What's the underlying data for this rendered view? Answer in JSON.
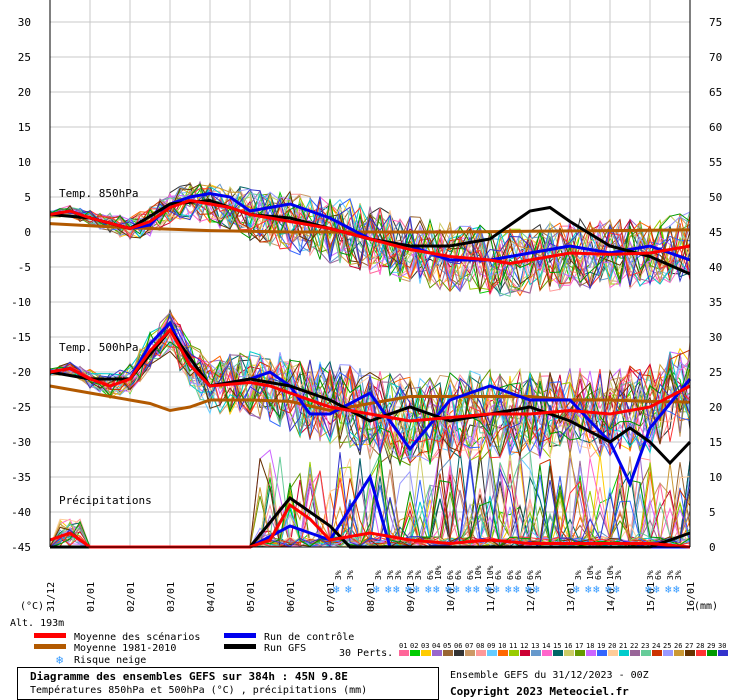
{
  "chart_data": {
    "type": "line",
    "left_axis_ticks": [
      "30",
      "25",
      "20",
      "15",
      "10",
      "5",
      "0",
      "-5",
      "-10",
      "-15",
      "-20",
      "-25",
      "-30",
      "-35",
      "-40",
      "-45"
    ],
    "right_axis_ticks": [
      "75",
      "70",
      "65",
      "60",
      "55",
      "50",
      "45",
      "40",
      "35",
      "30",
      "25",
      "20",
      "15",
      "10",
      "5",
      "0"
    ],
    "ylim": [
      -45,
      30
    ],
    "right_ylim": [
      0,
      75
    ],
    "left_unit": "(°C)",
    "right_unit": "(mm)",
    "x_ticks": [
      "31/12",
      "01/01",
      "02/01",
      "03/01",
      "04/01",
      "05/01",
      "06/01",
      "07/01",
      "08/01",
      "09/01",
      "10/01",
      "11/01",
      "12/01",
      "13/01",
      "14/01",
      "15/01",
      "16/01"
    ],
    "x_days": [
      0,
      1,
      2,
      3,
      4,
      5,
      6,
      7,
      8,
      9,
      10,
      11,
      12,
      13,
      14,
      15,
      16
    ],
    "panel_labels": [
      "Temp. 850hPa",
      "Temp. 500hPa",
      "Précipitations"
    ],
    "altitude_label": "Alt. 193m",
    "series": [
      {
        "name": "Moyenne des scénarios",
        "color": "#ff0000",
        "t850": [
          [
            0,
            2.5
          ],
          [
            0.5,
            3
          ],
          [
            1,
            2
          ],
          [
            2,
            0.5
          ],
          [
            2.5,
            1.5
          ],
          [
            3,
            3.5
          ],
          [
            3.5,
            4.5
          ],
          [
            4,
            4
          ],
          [
            4.5,
            3.5
          ],
          [
            5,
            2.5
          ],
          [
            6,
            1.5
          ],
          [
            7,
            0.5
          ],
          [
            8,
            -1
          ],
          [
            9,
            -2.5
          ],
          [
            10,
            -3.5
          ],
          [
            11,
            -4
          ],
          [
            11.5,
            -4.5
          ],
          [
            12,
            -4
          ],
          [
            13,
            -3
          ],
          [
            14,
            -3.2
          ],
          [
            15,
            -3
          ],
          [
            16,
            -2
          ]
        ],
        "t500": [
          [
            0,
            -20
          ],
          [
            0.5,
            -19.5
          ],
          [
            1,
            -21
          ],
          [
            1.5,
            -22
          ],
          [
            2,
            -21
          ],
          [
            2.5,
            -17
          ],
          [
            3,
            -14
          ],
          [
            3.5,
            -19
          ],
          [
            4,
            -22
          ],
          [
            5,
            -21.5
          ],
          [
            5.5,
            -22
          ],
          [
            6,
            -23
          ],
          [
            7,
            -25
          ],
          [
            8,
            -26
          ],
          [
            9,
            -27
          ],
          [
            10,
            -26.5
          ],
          [
            11,
            -26
          ],
          [
            12,
            -26
          ],
          [
            13,
            -25.5
          ],
          [
            14,
            -26
          ],
          [
            15,
            -25
          ],
          [
            16,
            -22
          ]
        ],
        "precip": [
          [
            0,
            1
          ],
          [
            0.5,
            2
          ],
          [
            1,
            0
          ],
          [
            5,
            0
          ],
          [
            5.5,
            1
          ],
          [
            6,
            6
          ],
          [
            6.5,
            4
          ],
          [
            7,
            1
          ],
          [
            8,
            2
          ],
          [
            9,
            1
          ],
          [
            10,
            0.5
          ],
          [
            11,
            1
          ],
          [
            12,
            0.5
          ],
          [
            13,
            0.5
          ],
          [
            14,
            0.5
          ],
          [
            15,
            0.5
          ],
          [
            16,
            0
          ]
        ]
      },
      {
        "name": "Moyenne 1981-2010",
        "color": "#b25900",
        "t850": [
          [
            0,
            1.2
          ],
          [
            2,
            0.6
          ],
          [
            4,
            0.2
          ],
          [
            6,
            0
          ],
          [
            8,
            0
          ],
          [
            10,
            0
          ],
          [
            12,
            0.1
          ],
          [
            14,
            0.2
          ],
          [
            16,
            0.3
          ]
        ],
        "t500": [
          [
            0,
            -22
          ],
          [
            1,
            -23
          ],
          [
            2,
            -24
          ],
          [
            2.5,
            -24.5
          ],
          [
            3,
            -25.5
          ],
          [
            3.5,
            -25
          ],
          [
            4,
            -24
          ],
          [
            5,
            -24
          ],
          [
            6,
            -24.2
          ],
          [
            7,
            -25.5
          ],
          [
            8,
            -24.5
          ],
          [
            9,
            -23.5
          ],
          [
            10,
            -23.5
          ],
          [
            11,
            -23.5
          ],
          [
            12,
            -23.5
          ],
          [
            13,
            -24
          ],
          [
            14,
            -24
          ],
          [
            15,
            -24.2
          ],
          [
            16,
            -24.3
          ]
        ]
      },
      {
        "name": "Run de contrôle",
        "color": "#0000ee",
        "t850": [
          [
            0,
            2.5
          ],
          [
            0.5,
            3
          ],
          [
            1,
            2
          ],
          [
            2,
            0.5
          ],
          [
            2.5,
            1
          ],
          [
            3,
            4
          ],
          [
            3.5,
            5
          ],
          [
            4,
            5.5
          ],
          [
            4.5,
            5
          ],
          [
            5,
            3
          ],
          [
            6,
            4
          ],
          [
            7,
            2
          ],
          [
            8,
            -1
          ],
          [
            9,
            -2
          ],
          [
            10,
            -4
          ],
          [
            11,
            -4
          ],
          [
            12,
            -3
          ],
          [
            13,
            -2
          ],
          [
            14,
            -3
          ],
          [
            15,
            -2
          ],
          [
            16,
            -4
          ]
        ],
        "t500": [
          [
            0,
            -20
          ],
          [
            0.5,
            -19.5
          ],
          [
            1,
            -21
          ],
          [
            2,
            -21
          ],
          [
            2.5,
            -16
          ],
          [
            3,
            -13
          ],
          [
            3.5,
            -19
          ],
          [
            4,
            -22
          ],
          [
            5,
            -21
          ],
          [
            5.5,
            -20
          ],
          [
            6,
            -22
          ],
          [
            6.5,
            -26
          ],
          [
            7,
            -26
          ],
          [
            8,
            -23
          ],
          [
            9,
            -31
          ],
          [
            10,
            -24
          ],
          [
            11,
            -22
          ],
          [
            12,
            -24
          ],
          [
            13,
            -24
          ],
          [
            14,
            -30
          ],
          [
            14.5,
            -36
          ],
          [
            15,
            -28
          ],
          [
            16,
            -21
          ]
        ],
        "precip": [
          [
            0,
            0
          ],
          [
            5,
            0
          ],
          [
            6,
            3
          ],
          [
            7,
            1
          ],
          [
            8,
            10
          ],
          [
            8.5,
            0
          ],
          [
            10,
            0
          ],
          [
            11,
            0
          ],
          [
            12,
            0
          ],
          [
            13,
            0
          ],
          [
            14,
            0
          ],
          [
            16,
            0
          ]
        ]
      },
      {
        "name": "Run GFS",
        "color": "#000000",
        "t850": [
          [
            0,
            2.5
          ],
          [
            1,
            2
          ],
          [
            2,
            0.5
          ],
          [
            3,
            4
          ],
          [
            4,
            4.5
          ],
          [
            5,
            2.5
          ],
          [
            6,
            2
          ],
          [
            7,
            0.5
          ],
          [
            8,
            -1
          ],
          [
            9,
            -2
          ],
          [
            10,
            -2
          ],
          [
            11,
            -1
          ],
          [
            11.5,
            1
          ],
          [
            12,
            3
          ],
          [
            12.5,
            3.5
          ],
          [
            13,
            1.5
          ],
          [
            14,
            -2
          ],
          [
            15,
            -3.5
          ],
          [
            16,
            -6
          ]
        ],
        "t500": [
          [
            0,
            -20
          ],
          [
            1,
            -21
          ],
          [
            2,
            -21
          ],
          [
            3,
            -14
          ],
          [
            4,
            -22
          ],
          [
            5,
            -21
          ],
          [
            6,
            -22
          ],
          [
            7,
            -24
          ],
          [
            8,
            -27
          ],
          [
            9,
            -25
          ],
          [
            10,
            -27
          ],
          [
            11,
            -26
          ],
          [
            12,
            -25
          ],
          [
            13,
            -27
          ],
          [
            14,
            -30
          ],
          [
            14.5,
            -28
          ],
          [
            15,
            -30
          ],
          [
            15.5,
            -33
          ],
          [
            16,
            -30
          ]
        ],
        "precip": [
          [
            0,
            0
          ],
          [
            5,
            0
          ],
          [
            6,
            7
          ],
          [
            7,
            3
          ],
          [
            7.5,
            0
          ],
          [
            9,
            0
          ],
          [
            12,
            0
          ],
          [
            13,
            0
          ],
          [
            14,
            0
          ],
          [
            15,
            0
          ],
          [
            16,
            2
          ]
        ]
      }
    ],
    "perturbation_count": 30,
    "snow_risk_days": [
      7.2,
      7.5,
      8.2,
      8.5,
      8.7,
      9,
      9.2,
      9.5,
      9.7,
      10,
      10.2,
      10.5,
      10.7,
      11,
      11.2,
      11.5,
      11.7,
      12,
      12.2,
      13.2,
      13.5,
      13.7,
      14,
      14.2,
      15,
      15.2,
      15.5,
      15.7
    ],
    "snow_risk_pct": [
      "3%",
      "3%",
      "3%",
      "3%",
      "3%",
      "3%",
      "3%",
      "6%",
      "10%",
      "6%",
      "6%",
      "6%",
      "10%",
      "10%",
      "6%",
      "6%",
      "6%",
      "6%",
      "3%",
      "3%",
      "10%",
      "6%",
      "10%",
      "3%",
      "3%",
      "6%",
      "3%",
      "3%"
    ]
  },
  "legend": {
    "items": [
      {
        "label": "Moyenne des scénarios",
        "color": "#ff0000"
      },
      {
        "label": "Moyenne 1981-2010",
        "color": "#b25900"
      },
      {
        "label": "Run de contrôle",
        "color": "#0000ee"
      },
      {
        "label": "Run GFS",
        "color": "#000000"
      }
    ],
    "snow_label": "Risque neige",
    "perts_label": "30 Perts.",
    "pert_numbers": [
      "01",
      "02",
      "03",
      "04",
      "05",
      "06",
      "07",
      "08",
      "09",
      "10",
      "11",
      "12",
      "13",
      "14",
      "15",
      "16",
      "17",
      "18",
      "19",
      "20",
      "21",
      "22",
      "23",
      "24",
      "25",
      "26",
      "27",
      "28",
      "29",
      "30"
    ],
    "pert_colors": [
      "#ff6699",
      "#00cc00",
      "#ffcc00",
      "#9966cc",
      "#996633",
      "#333333",
      "#cc9966",
      "#ff9999",
      "#66ccff",
      "#ff6600",
      "#99cc00",
      "#cc0033",
      "#6699cc",
      "#ff66cc",
      "#006666",
      "#cccc66",
      "#669900",
      "#cc66ff",
      "#3366ff",
      "#ffcc99",
      "#00cccc",
      "#996699",
      "#66cc99",
      "#cc3300",
      "#9999ff",
      "#cc9933",
      "#663300",
      "#ff3333",
      "#009900",
      "#3333cc"
    ]
  },
  "footer": {
    "title": "Diagramme des ensembles GEFS sur 384h : 45N 9.8E",
    "subtitle": "Températures 850hPa et 500hPa (°C) , précipitations (mm)",
    "run_info": "Ensemble GEFS du 31/12/2023 - 00Z",
    "copyright": "Copyright 2023 Meteociel.fr"
  }
}
